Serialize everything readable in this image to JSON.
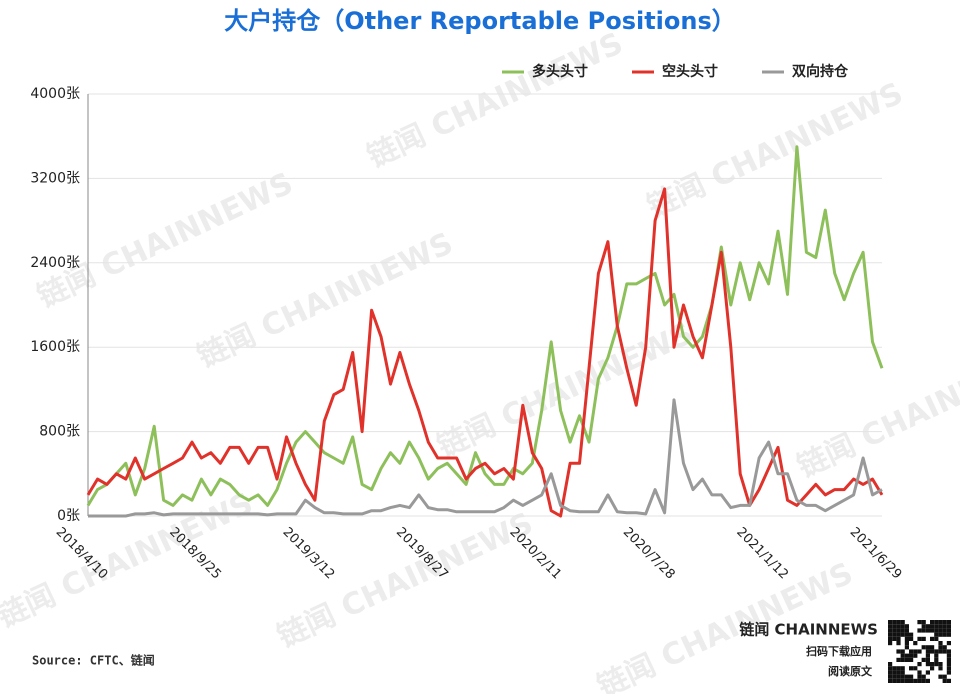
{
  "chart_data": {
    "type": "line",
    "title": "大户持仓（Other Reportable Positions）",
    "categories": [
      "2018/4/10",
      null,
      null,
      null,
      null,
      null,
      null,
      null,
      null,
      null,
      null,
      null,
      "2018/9/25",
      null,
      null,
      null,
      null,
      null,
      null,
      null,
      null,
      null,
      null,
      null,
      "2019/3/12",
      null,
      null,
      null,
      null,
      null,
      null,
      null,
      null,
      null,
      null,
      null,
      "2019/8/27",
      null,
      null,
      null,
      null,
      null,
      null,
      null,
      null,
      null,
      null,
      null,
      "2020/2/11",
      null,
      null,
      null,
      null,
      null,
      null,
      null,
      null,
      null,
      null,
      null,
      "2020/7/28",
      null,
      null,
      null,
      null,
      null,
      null,
      null,
      null,
      null,
      null,
      null,
      "2021/1/12",
      null,
      null,
      null,
      null,
      null,
      null,
      null,
      null,
      null,
      null,
      null,
      "2021/6/29"
    ],
    "series": [
      {
        "name": "多头头寸",
        "color": "#8dc05a",
        "values": [
          100,
          250,
          300,
          400,
          500,
          200,
          450,
          850,
          150,
          100,
          200,
          150,
          350,
          200,
          350,
          300,
          200,
          150,
          200,
          100,
          250,
          500,
          700,
          800,
          700,
          600,
          550,
          500,
          750,
          300,
          250,
          450,
          600,
          500,
          700,
          550,
          350,
          450,
          500,
          400,
          300,
          600,
          400,
          300,
          300,
          450,
          400,
          500,
          1000,
          1650,
          1000,
          700,
          950,
          700,
          1300,
          1500,
          1800,
          2200,
          2200,
          2250,
          2300,
          2000,
          2100,
          1700,
          1600,
          1700,
          2000,
          2550,
          2000,
          2400,
          2050,
          2400,
          2200,
          2700,
          2100,
          3500,
          2500,
          2450,
          2900,
          2300,
          2050,
          2300,
          2500,
          1650,
          1400
        ]
      },
      {
        "name": "空头头寸",
        "color": "#e0322a",
        "values": [
          200,
          350,
          300,
          400,
          350,
          550,
          350,
          400,
          450,
          500,
          550,
          700,
          550,
          600,
          500,
          650,
          650,
          500,
          650,
          650,
          350,
          750,
          500,
          300,
          150,
          900,
          1150,
          1200,
          1550,
          800,
          1950,
          1700,
          1250,
          1550,
          1250,
          1000,
          700,
          550,
          550,
          550,
          350,
          450,
          500,
          400,
          450,
          350,
          1050,
          600,
          450,
          50,
          0,
          500,
          500,
          1400,
          2300,
          2600,
          1800,
          1400,
          1050,
          1600,
          2800,
          3100,
          1600,
          2000,
          1700,
          1500,
          2000,
          2500,
          1600,
          400,
          100,
          250,
          450,
          650,
          150,
          100,
          200,
          300,
          200,
          250,
          250,
          350,
          300,
          350,
          200
        ]
      },
      {
        "name": "双向持仓",
        "color": "#999999",
        "values": [
          0,
          0,
          0,
          0,
          0,
          20,
          20,
          30,
          10,
          20,
          20,
          20,
          20,
          20,
          20,
          20,
          20,
          20,
          20,
          10,
          20,
          20,
          20,
          150,
          80,
          30,
          30,
          20,
          20,
          20,
          50,
          50,
          80,
          100,
          80,
          200,
          80,
          60,
          60,
          40,
          40,
          40,
          40,
          40,
          80,
          150,
          100,
          150,
          200,
          400,
          100,
          50,
          40,
          40,
          40,
          200,
          40,
          30,
          30,
          20,
          250,
          30,
          1100,
          500,
          250,
          350,
          200,
          200,
          80,
          100,
          100,
          550,
          700,
          400,
          400,
          150,
          100,
          100,
          50,
          100,
          150,
          200,
          550,
          200,
          250
        ]
      }
    ],
    "ylim": [
      0,
      4000
    ],
    "yticks": [
      {
        "value": 0,
        "label": "0张"
      },
      {
        "value": 800,
        "label": "800张"
      },
      {
        "value": 1600,
        "label": "1600张"
      },
      {
        "value": 2400,
        "label": "2400张"
      },
      {
        "value": 3200,
        "label": "3200张"
      },
      {
        "value": 4000,
        "label": "4000张"
      }
    ],
    "grid": true,
    "legend": "top-right"
  },
  "watermark": "链闻 CHAINNEWS",
  "footer": {
    "source": "Source: CFTC、链闻",
    "brand": "链闻 CHAINNEWS",
    "download": "扫码下载应用",
    "read": "阅读原文"
  }
}
